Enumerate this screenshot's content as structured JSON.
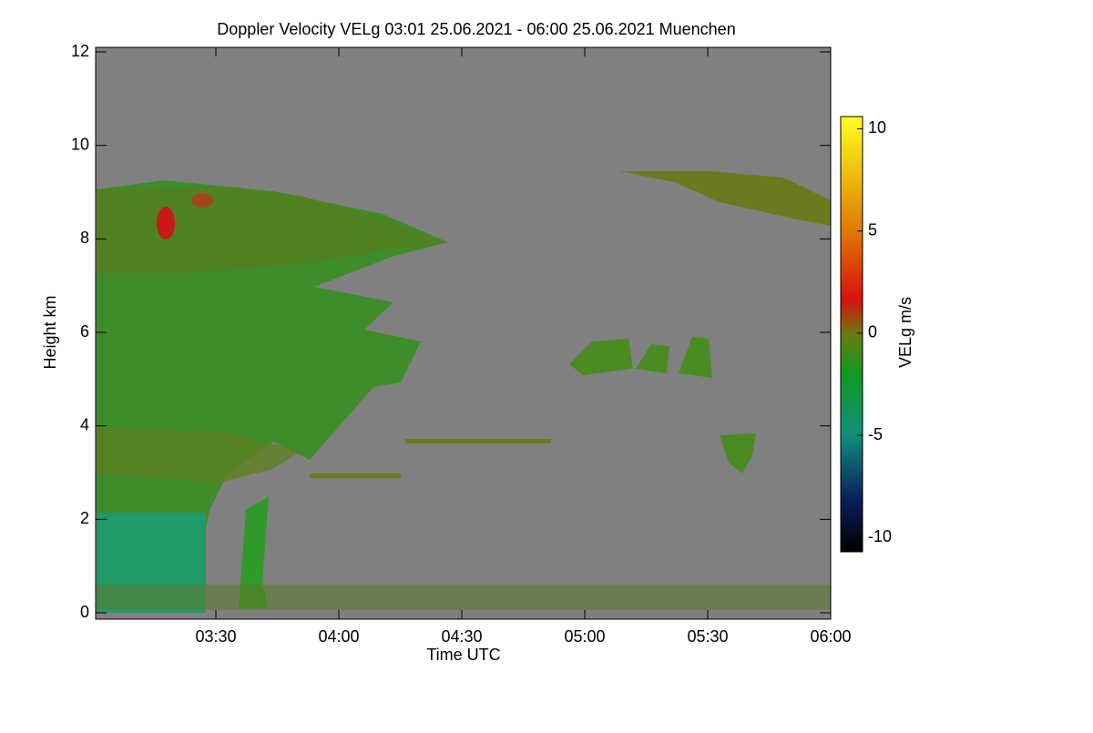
{
  "chart_data": {
    "type": "heatmap",
    "title": "Doppler Velocity VELg   03:01 25.06.2021 - 06:00 25.06.2021 Muenchen",
    "xlabel": "Time UTC",
    "ylabel": "Height km",
    "xlim": [
      181,
      360
    ],
    "xticks": [
      {
        "value": 210,
        "label": "03:30"
      },
      {
        "value": 240,
        "label": "04:00"
      },
      {
        "value": 270,
        "label": "04:30"
      },
      {
        "value": 300,
        "label": "05:00"
      },
      {
        "value": 330,
        "label": "05:30"
      },
      {
        "value": 360,
        "label": "06:00"
      }
    ],
    "ylim": [
      0,
      12
    ],
    "yticks": [
      0,
      2,
      4,
      6,
      8,
      10,
      12
    ],
    "colorbar": {
      "label": "VELg m/s",
      "lim": [
        -10.7,
        10.6
      ],
      "ticks": [
        -10,
        -5,
        0,
        5,
        10
      ]
    }
  }
}
